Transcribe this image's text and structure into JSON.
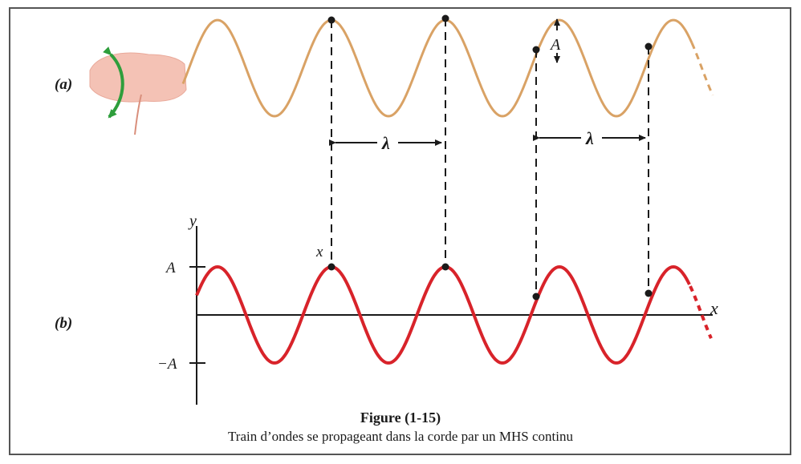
{
  "panel_a": {
    "label": "(a)",
    "amplitude_label": "A",
    "wavelength_label_1": "λ",
    "wavelength_label_2": "λ"
  },
  "panel_b": {
    "label": "(b)",
    "y_axis_label": "y",
    "x_axis_label": "x",
    "pos_amp_label": "A",
    "neg_amp_label": "−A",
    "x_marker_label": "x"
  },
  "caption": {
    "title": "Figure (1-15)",
    "subtitle": "Train d’ondes se propageant dans la corde par un MHS continu"
  },
  "colors": {
    "rope": "#d9a265",
    "graph_wave": "#d8232a",
    "arrow": "#2e9e3c",
    "hand": "#f4c2b5",
    "line": "#1a1a1a"
  }
}
